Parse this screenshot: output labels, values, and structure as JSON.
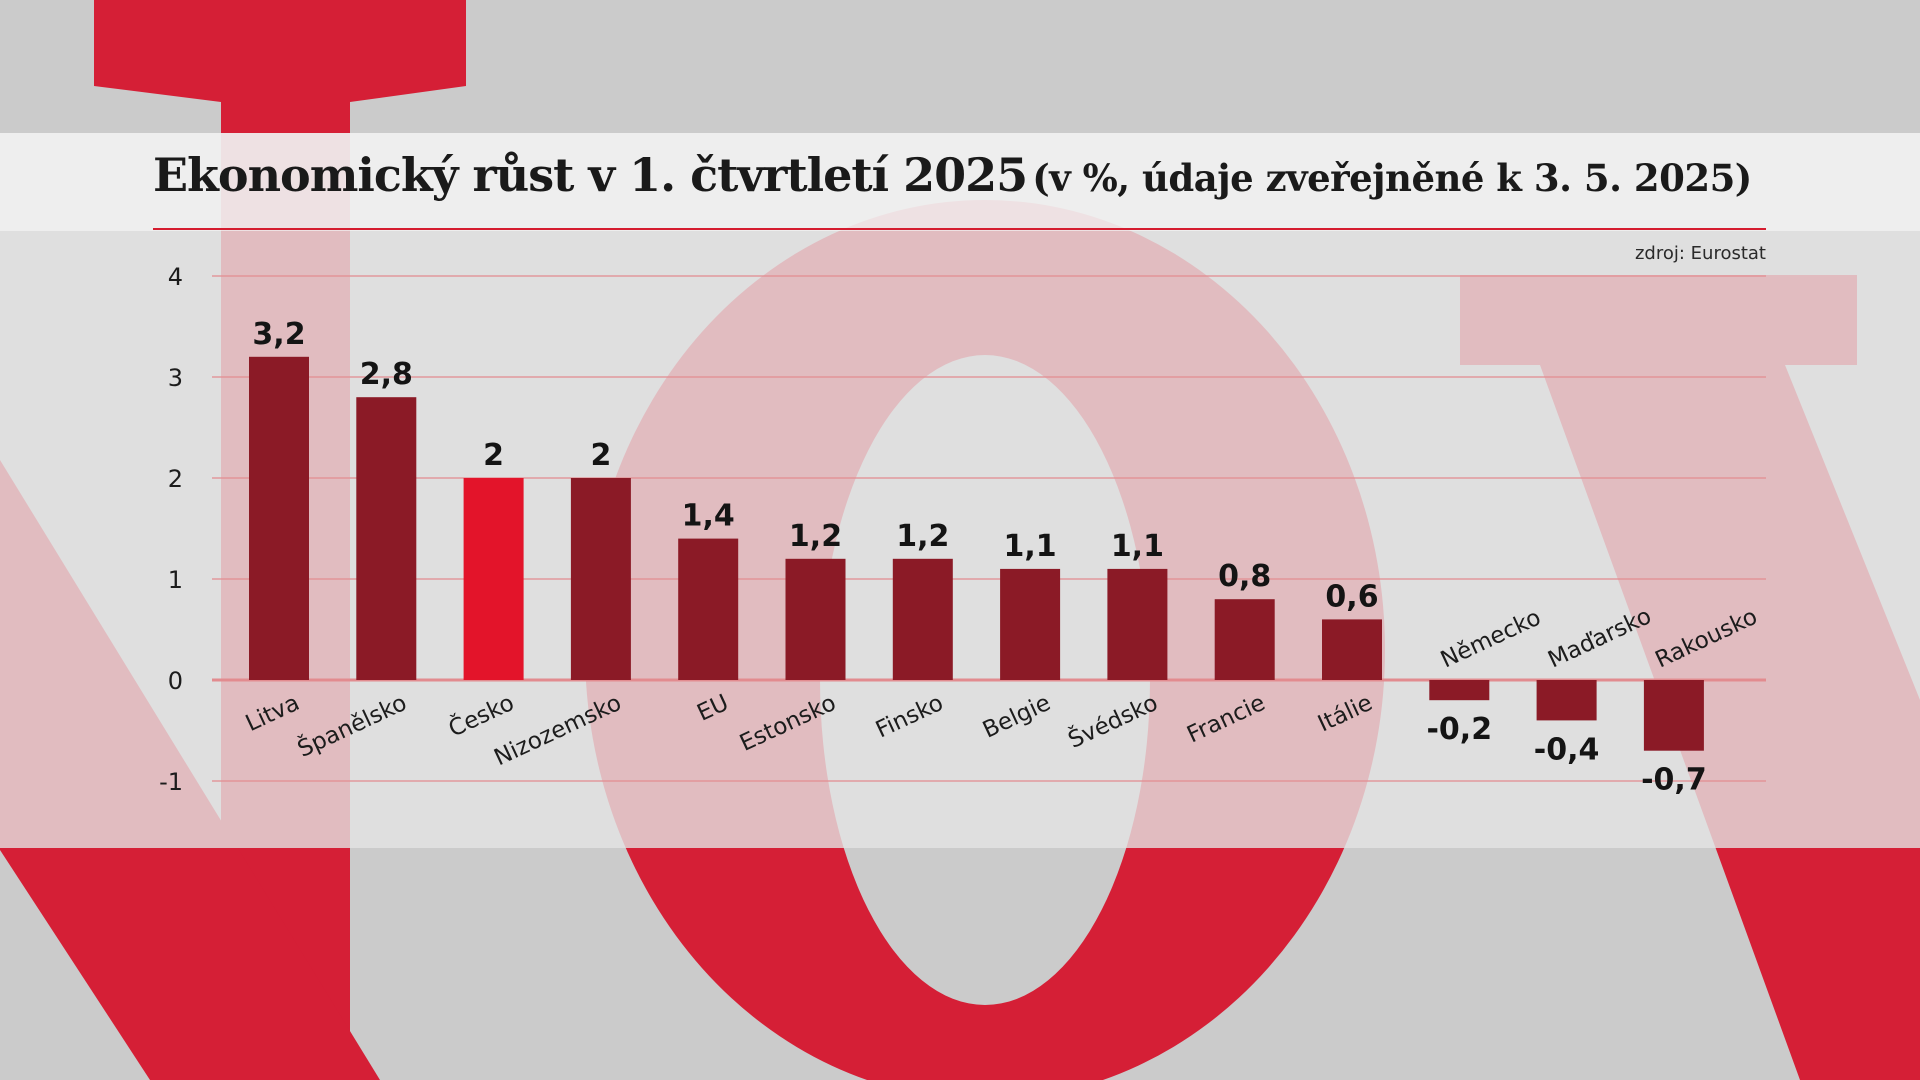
{
  "title": "Ekonomický růst v 1. čtvrtletí 2025",
  "subtitle": "(v %, údaje zveřejněné k 3. 5. 2025)",
  "source": "zdroj: Eurostat",
  "colors": {
    "bar": "#8b1a26",
    "highlight": "#e3142a",
    "accent": "#d51c2f",
    "gridline": "#e28b8f",
    "background": "#cbcbcb"
  },
  "chart_data": {
    "type": "bar",
    "categories": [
      "Litva",
      "Španělsko",
      "Česko",
      "Nizozemsko",
      "EU",
      "Estonsko",
      "Finsko",
      "Belgie",
      "Švédsko",
      "Francie",
      "Itálie",
      "Německo",
      "Maďarsko",
      "Rakousko"
    ],
    "values": [
      3.2,
      2.8,
      2,
      2,
      1.4,
      1.2,
      1.2,
      1.1,
      1.1,
      0.8,
      0.6,
      -0.2,
      -0.4,
      -0.7
    ],
    "value_labels": [
      "3,2",
      "2,8",
      "2",
      "2",
      "1,4",
      "1,2",
      "1,2",
      "1,1",
      "1,1",
      "0,8",
      "0,6",
      "-0,2",
      "-0,4",
      "-0,7"
    ],
    "highlight_category": "Česko",
    "y_ticks": [
      "-1",
      "0",
      "1",
      "2",
      "3",
      "4"
    ],
    "ylim": [
      -1,
      4
    ],
    "grid": true
  }
}
